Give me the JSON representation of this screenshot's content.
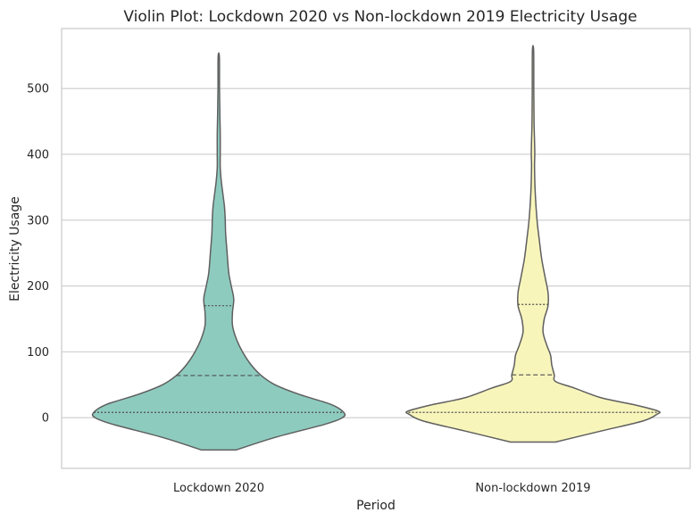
{
  "chart_data": {
    "type": "violin",
    "title": "Violin Plot: Lockdown 2020 vs Non-lockdown 2019 Electricity Usage",
    "xlabel": "Period",
    "ylabel": "Electricity Usage",
    "categories": [
      "Lockdown 2020",
      "Non-lockdown 2019"
    ],
    "ylim": [
      -77,
      591
    ],
    "yticks": [
      0,
      100,
      200,
      300,
      400,
      500
    ],
    "grid": "horizontal",
    "series": [
      {
        "category": "Lockdown 2020",
        "color": "#8ecbbf",
        "min": -49,
        "max": 548,
        "q1": 8,
        "median": 64,
        "q3": 170,
        "profile": [
          [
            -49,
            0.14
          ],
          [
            -30,
            0.45
          ],
          [
            -10,
            0.85
          ],
          [
            0,
            0.99
          ],
          [
            8,
            1.0
          ],
          [
            20,
            0.9
          ],
          [
            35,
            0.65
          ],
          [
            50,
            0.45
          ],
          [
            64,
            0.34
          ],
          [
            80,
            0.26
          ],
          [
            100,
            0.19
          ],
          [
            120,
            0.14
          ],
          [
            140,
            0.11
          ],
          [
            160,
            0.11
          ],
          [
            180,
            0.12
          ],
          [
            200,
            0.1
          ],
          [
            220,
            0.08
          ],
          [
            250,
            0.067
          ],
          [
            280,
            0.055
          ],
          [
            300,
            0.052
          ],
          [
            320,
            0.046
          ],
          [
            340,
            0.033
          ],
          [
            360,
            0.02
          ],
          [
            380,
            0.012
          ],
          [
            400,
            0.012
          ],
          [
            430,
            0.012
          ],
          [
            460,
            0.009
          ],
          [
            500,
            0.006
          ],
          [
            548,
            0.005
          ]
        ]
      },
      {
        "category": "Non-lockdown 2019",
        "color": "#f8f5bb",
        "min": -37,
        "max": 558,
        "q1": 8,
        "median": 65,
        "q3": 172,
        "profile": [
          [
            -37,
            0.18
          ],
          [
            -20,
            0.55
          ],
          [
            -5,
            0.88
          ],
          [
            5,
            0.99
          ],
          [
            10,
            1.0
          ],
          [
            20,
            0.8
          ],
          [
            30,
            0.55
          ],
          [
            45,
            0.33
          ],
          [
            55,
            0.18
          ],
          [
            65,
            0.17
          ],
          [
            80,
            0.15
          ],
          [
            95,
            0.14
          ],
          [
            110,
            0.11
          ],
          [
            130,
            0.08
          ],
          [
            150,
            0.09
          ],
          [
            170,
            0.12
          ],
          [
            190,
            0.12
          ],
          [
            210,
            0.1
          ],
          [
            240,
            0.07
          ],
          [
            270,
            0.05
          ],
          [
            300,
            0.032
          ],
          [
            340,
            0.018
          ],
          [
            380,
            0.012
          ],
          [
            400,
            0.014
          ],
          [
            420,
            0.012
          ],
          [
            450,
            0.008
          ],
          [
            500,
            0.006
          ],
          [
            558,
            0.005
          ]
        ]
      }
    ]
  }
}
